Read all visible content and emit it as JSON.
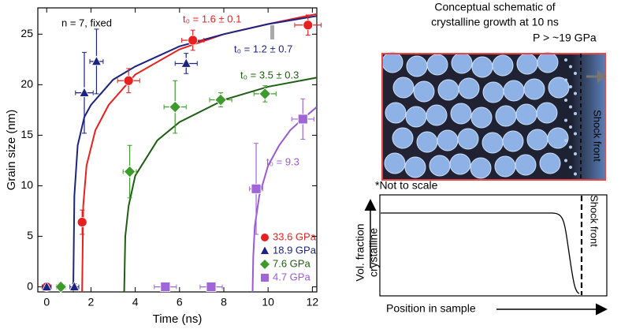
{
  "chart_data": {
    "type": "scatter",
    "xlabel": "Time (ns)",
    "ylabel": "Grain size (nm)",
    "xlim": [
      -0.4,
      12.2
    ],
    "ylim": [
      -0.5,
      27.6
    ],
    "xticks": [
      0,
      2,
      4,
      6,
      8,
      10,
      12
    ],
    "yticks": [
      0,
      5,
      10,
      15,
      20,
      25
    ],
    "legend": "lower right",
    "annotations": [
      "n = 7, fixed",
      "t₀ = 1.6 ± 0.1",
      "t₀ = 1.2 ± 0.7",
      "t₀ = 3.5 ± 0.3",
      "t₀ = 9.3"
    ],
    "series": [
      {
        "name": "33.6 GPa",
        "color": "#e8201f",
        "curve_color": "#e8201f",
        "marker": "circle",
        "x": [
          0,
          1.6,
          3.7,
          6.6,
          11.8
        ],
        "values": [
          0,
          6.4,
          20.4,
          24.4,
          25.9
        ],
        "xerr": [
          0.2,
          0.15,
          0.5,
          0.5,
          0.6
        ],
        "yerr": [
          0.3,
          1.2,
          1.2,
          1.0,
          1.0
        ],
        "fit_x": [
          1.6,
          1.65,
          1.8,
          2.2,
          2.8,
          4,
          6,
          8,
          10,
          12.2
        ],
        "fit_y": [
          -0.5,
          8,
          12,
          15.5,
          18,
          21,
          23.5,
          25,
          26,
          27
        ]
      },
      {
        "name": "18.9 GPa",
        "color": "#1c2381",
        "curve_color": "#1c2381",
        "marker": "triangle",
        "x": [
          0,
          1.25,
          1.7,
          2.25,
          6.3
        ],
        "values": [
          0,
          0,
          19.2,
          22.3,
          22.1
        ],
        "xerr": [
          0.2,
          0.2,
          0.4,
          0.3,
          0.5
        ],
        "yerr": [
          0.3,
          0.3,
          4,
          3.2,
          1.0
        ],
        "fit_x": [
          1.2,
          1.25,
          1.4,
          1.7,
          2,
          3,
          4,
          6,
          8,
          10,
          12.2
        ],
        "fit_y": [
          -0.5,
          9,
          14,
          16.8,
          18,
          20.5,
          21.8,
          23.8,
          25,
          26,
          26.8
        ]
      },
      {
        "name": "7.6 GPa",
        "color": "#3d9a2b",
        "curve_color": "#1e5e12",
        "marker": "diamond",
        "x": [
          0.64,
          3.75,
          5.8,
          7.86,
          9.86
        ],
        "values": [
          0,
          11.4,
          17.8,
          18.5,
          19.1
        ],
        "xerr": [
          0.2,
          0.3,
          0.5,
          0.5,
          0.5
        ],
        "yerr": [
          0.3,
          2.6,
          2.6,
          0.7,
          0.8
        ],
        "fit_x": [
          3.5,
          3.55,
          3.7,
          4,
          5,
          6,
          8,
          10,
          12.2
        ],
        "fit_y": [
          -0.5,
          5,
          8,
          11,
          14.5,
          16.3,
          18.5,
          19.8,
          20.7
        ]
      },
      {
        "name": "4.7 GPa",
        "color": "#a066d8",
        "curve_color": "#9b59d6",
        "marker": "square",
        "x": [
          5.36,
          7.43,
          9.46,
          11.57
        ],
        "values": [
          0,
          0,
          9.7,
          16.6
        ],
        "xerr": [
          0.5,
          0.5,
          0.3,
          0.5
        ],
        "yerr": [
          0.3,
          0.3,
          4.5,
          2.0
        ],
        "fit_x": [
          9.3,
          9.33,
          9.4,
          9.6,
          10,
          10.5,
          11,
          11.5,
          12.2
        ],
        "fit_y": [
          -0.5,
          3,
          6,
          9,
          12,
          14,
          15.5,
          16.5,
          17.8
        ]
      }
    ]
  },
  "schematic": {
    "title_lines": [
      "Conceptual schematic of",
      "crystalline growth at 10 ns"
    ],
    "pressure": "P > ~19 GPa",
    "top_shock": "Shock front",
    "note": "*Not to scale",
    "bottom_shock": "Shock front",
    "ylabel_lines": [
      "Vol. fraction",
      "crystalline"
    ],
    "xlabel": "Position in sample"
  }
}
